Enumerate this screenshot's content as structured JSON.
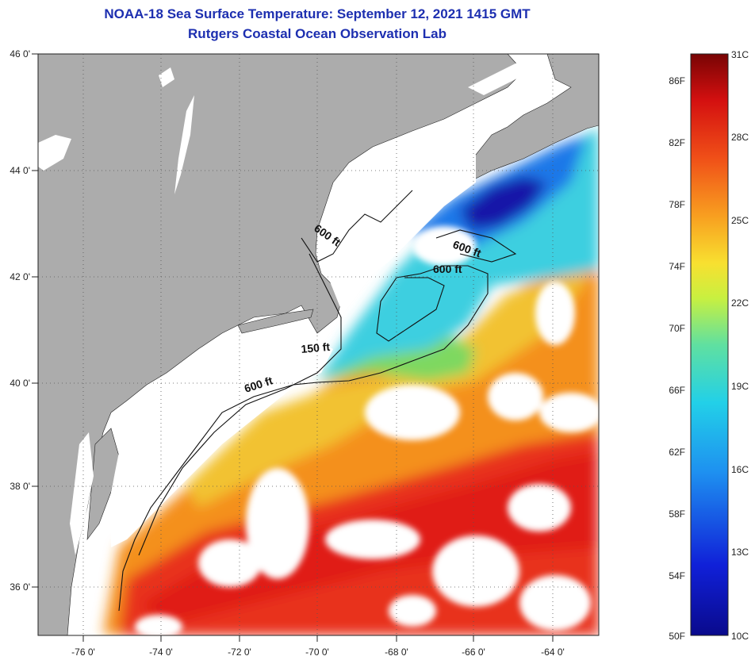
{
  "header": {
    "title": "NOAA-18 Sea Surface Temperature:  September 12, 2021 1415 GMT",
    "subtitle": "Rutgers Coastal Ocean Observation Lab"
  },
  "map": {
    "lat_labels": [
      "46 0'",
      "44 0'",
      "42 0'",
      "40 0'",
      "38 0'",
      "36 0'"
    ],
    "lon_labels": [
      "-76 0'",
      "-74 0'",
      "-72 0'",
      "-70 0'",
      "-68 0'",
      "-66 0'",
      "-64 0'"
    ],
    "contour_labels": [
      "600 ft",
      "600 ft",
      "600 ft",
      "150 ft",
      "600 ft"
    ],
    "colors": {
      "land": "#acacac",
      "cloud": "#ffffff",
      "warm": "#e8261a",
      "orange": "#f48a1e",
      "yellow": "#f2c832",
      "cyan": "#3ad0e0",
      "blue": "#1a5ee6",
      "deep_blue": "#1010a0"
    }
  },
  "colorbar": {
    "fahrenheit_labels": [
      "86F",
      "82F",
      "78F",
      "74F",
      "70F",
      "66F",
      "62F",
      "58F",
      "54F",
      "50F"
    ],
    "celsius_labels": [
      "31C",
      "28C",
      "25C",
      "22C",
      "19C",
      "16C",
      "13C",
      "10C"
    ],
    "min_c": 10,
    "max_c": 31
  }
}
